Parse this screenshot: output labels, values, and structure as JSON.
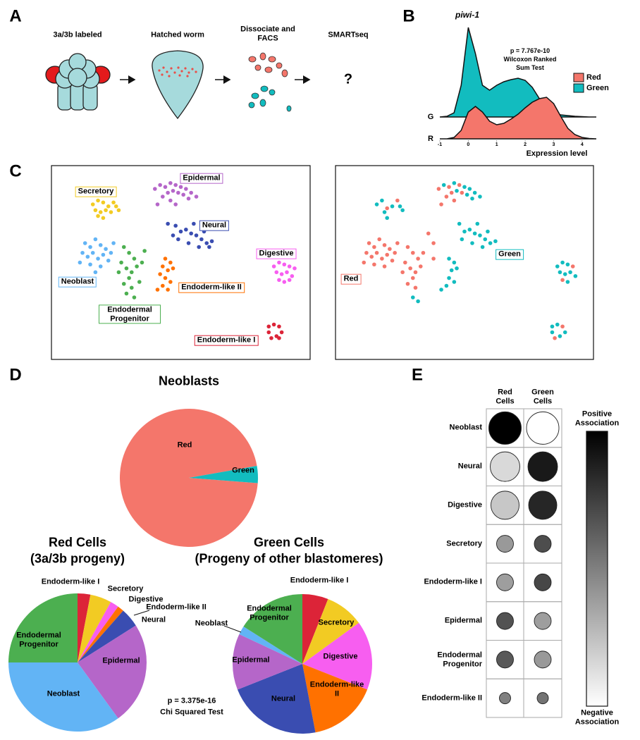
{
  "panel_labels": [
    "A",
    "B",
    "C",
    "D",
    "E"
  ],
  "panel_a": {
    "steps": [
      "3a/3b labeled",
      "Hatched worm",
      "Dissociate and FACS",
      "SMARTseq"
    ],
    "result": "?"
  },
  "chart_data": [
    {
      "type": "density",
      "title": "piwi-1",
      "annotation": [
        "p = 7.767e-10",
        "Wilcoxon Ranked",
        "Sum Test"
      ],
      "x": [
        -1,
        -0.75,
        -0.5,
        -0.25,
        0,
        0.25,
        0.5,
        0.75,
        1,
        1.25,
        1.5,
        1.75,
        2,
        2.25,
        2.5,
        2.75,
        3,
        3.25,
        3.5,
        3.75,
        4,
        4.25,
        4.5
      ],
      "series": [
        {
          "name": "Red",
          "label": "R",
          "color": "#f4766b",
          "values": [
            0,
            0,
            0.02,
            0.12,
            0.38,
            0.46,
            0.38,
            0.25,
            0.2,
            0.22,
            0.28,
            0.35,
            0.44,
            0.52,
            0.57,
            0.59,
            0.5,
            0.32,
            0.15,
            0.06,
            0.02,
            0.005,
            0
          ]
        },
        {
          "name": "Green",
          "label": "G",
          "color": "#12bcbf",
          "values": [
            0,
            0.01,
            0.06,
            0.45,
            1.27,
            0.9,
            0.45,
            0.38,
            0.45,
            0.5,
            0.53,
            0.55,
            0.52,
            0.42,
            0.26,
            0.12,
            0.06,
            0.03,
            0.02,
            0.01,
            0.005,
            0,
            0
          ]
        }
      ],
      "xlabel": "Expression level",
      "xlim": [
        -1,
        4.5
      ],
      "xticks": [
        -1,
        0,
        1,
        2,
        3,
        4
      ]
    },
    {
      "type": "scatter",
      "series": [
        {
          "name": "Secretory",
          "color": "#f2cb23",
          "x": [
            16,
            18,
            20,
            22,
            17,
            19,
            21,
            23,
            25,
            24,
            18,
            20,
            26
          ],
          "values": [
            80,
            82,
            81,
            79,
            77,
            76,
            77,
            76,
            79,
            81,
            74,
            73,
            77
          ]
        },
        {
          "name": "Epidermal",
          "color": "#b566c9",
          "x": [
            40,
            42,
            44,
            46,
            48,
            50,
            52,
            54,
            45,
            47,
            49,
            51,
            43,
            46,
            53,
            56,
            41,
            48,
            52
          ],
          "values": [
            88,
            90,
            89,
            91,
            90,
            89,
            88,
            86,
            86,
            87,
            86,
            85,
            84,
            82,
            83,
            84,
            80,
            80,
            92
          ]
        },
        {
          "name": "Neural",
          "color": "#3a4db1",
          "x": [
            45,
            48,
            50,
            52,
            54,
            56,
            58,
            60,
            61,
            57,
            53,
            49,
            47,
            55,
            59,
            62
          ],
          "values": [
            70,
            69,
            66,
            67,
            65,
            64,
            62,
            60,
            58,
            58,
            60,
            62,
            64,
            70,
            66,
            61
          ]
        },
        {
          "name": "Neoblast",
          "color": "#62b4f5",
          "x": [
            13,
            15,
            17,
            19,
            21,
            12,
            14,
            16,
            18,
            20,
            22,
            11,
            15,
            19,
            23,
            24,
            17
          ],
          "values": [
            60,
            58,
            62,
            59,
            57,
            55,
            53,
            55,
            52,
            54,
            51,
            50,
            49,
            48,
            55,
            60,
            45
          ]
        },
        {
          "name": "Endodermal Progenitor",
          "color": "#4caf50",
          "x": [
            28,
            30,
            32,
            27,
            29,
            31,
            33,
            35,
            30,
            28,
            31,
            29,
            32,
            34,
            26,
            36
          ],
          "values": [
            58,
            55,
            52,
            50,
            47,
            45,
            48,
            50,
            42,
            39,
            37,
            34,
            32,
            40,
            45,
            56
          ]
        },
        {
          "name": "Endoderm-like II",
          "color": "#ff7100",
          "x": [
            44,
            46,
            43,
            45,
            47,
            42,
            44,
            46,
            43,
            41,
            45
          ],
          "values": [
            52,
            50,
            48,
            46,
            47,
            44,
            42,
            40,
            38,
            36,
            36
          ]
        },
        {
          "name": "Digestive",
          "color": "#f75ef0",
          "x": [
            86,
            88,
            90,
            92,
            87,
            89,
            91,
            93,
            88,
            90,
            92,
            94
          ],
          "values": [
            48,
            50,
            49,
            48,
            45,
            44,
            45,
            43,
            41,
            40,
            41,
            47
          ]
        },
        {
          "name": "Endoderm-like I",
          "color": "#dc2438",
          "x": [
            84,
            86,
            88,
            89,
            87,
            85,
            84,
            88
          ],
          "values": [
            17,
            18,
            17,
            14,
            12,
            11,
            14,
            11
          ]
        }
      ]
    },
    {
      "type": "scatter",
      "series": [
        {
          "name": "Red",
          "color": "#f4766b",
          "x": [
            13,
            15,
            17,
            19,
            21,
            12,
            14,
            16,
            18,
            20,
            22,
            11,
            15,
            19,
            23,
            24,
            28,
            30,
            32,
            27,
            29,
            31,
            33,
            30,
            28,
            31,
            26,
            40,
            44,
            48,
            45,
            49,
            43,
            46,
            41,
            36,
            38,
            24,
            20,
            88,
            85,
            92,
            88,
            34,
            38
          ],
          "values": [
            60,
            58,
            62,
            59,
            57,
            55,
            53,
            55,
            52,
            54,
            51,
            50,
            49,
            48,
            55,
            60,
            58,
            55,
            52,
            50,
            47,
            45,
            48,
            42,
            39,
            37,
            45,
            88,
            89,
            90,
            86,
            86,
            84,
            82,
            80,
            65,
            60,
            82,
            78,
            17,
            11,
            48,
            41,
            55,
            52
          ]
        },
        {
          "name": "Green",
          "color": "#12bcbf",
          "x": [
            16,
            18,
            22,
            19,
            25,
            42,
            46,
            50,
            52,
            54,
            47,
            51,
            53,
            56,
            48,
            50,
            52,
            54,
            56,
            58,
            60,
            57,
            53,
            49,
            55,
            59,
            62,
            44,
            46,
            45,
            47,
            44,
            46,
            43,
            41,
            30,
            32,
            86,
            88,
            90,
            87,
            89,
            91,
            93,
            90,
            84,
            86,
            89,
            87,
            84,
            20,
            26
          ],
          "values": [
            80,
            82,
            79,
            76,
            79,
            90,
            91,
            89,
            88,
            86,
            87,
            85,
            83,
            84,
            70,
            66,
            67,
            65,
            64,
            62,
            60,
            58,
            60,
            62,
            70,
            66,
            61,
            52,
            50,
            46,
            47,
            42,
            40,
            38,
            36,
            32,
            30,
            48,
            50,
            49,
            45,
            44,
            45,
            43,
            40,
            17,
            18,
            14,
            12,
            14,
            73,
            77
          ]
        }
      ]
    },
    {
      "type": "pie",
      "title": "Neoblasts",
      "categories": [
        "Red",
        "Green"
      ],
      "values": [
        96,
        4
      ],
      "colors": [
        "#f4766b",
        "#12bcbf"
      ]
    },
    {
      "type": "pie",
      "title": "Red Cells",
      "subtitle": "(3a/3b progeny)",
      "categories": [
        "Endoderm-like I",
        "Secretory",
        "Digestive",
        "Endoderm-like II",
        "Neural",
        "Epidermal",
        "Neoblast",
        "Endodermal Progenitor"
      ],
      "values": [
        3,
        5,
        2,
        1.5,
        4.5,
        24,
        35,
        25
      ],
      "colors": [
        "#dc2438",
        "#f2cb23",
        "#f75ef0",
        "#ff7100",
        "#3a4db1",
        "#b566c9",
        "#62b4f5",
        "#4caf50"
      ],
      "annotation": [
        "p = 3.375e-16",
        "Chi Squared Test"
      ]
    },
    {
      "type": "pie",
      "title": "Green Cells",
      "subtitle": "(Progeny of other blastomeres)",
      "categories": [
        "Endoderm-like I",
        "Secretory",
        "Digestive",
        "Endoderm-like II",
        "Neural",
        "Epidermal",
        "Neoblast",
        "Endodermal Progenitor"
      ],
      "values": [
        6,
        9,
        16,
        16,
        22,
        13,
        2,
        16
      ],
      "colors": [
        "#dc2438",
        "#f2cb23",
        "#f75ef0",
        "#ff7100",
        "#3a4db1",
        "#b566c9",
        "#62b4f5",
        "#4caf50"
      ]
    },
    {
      "type": "dot",
      "categories": [
        "Neoblast",
        "Neural",
        "Digestive",
        "Secretory",
        "Endoderm-like I",
        "Epidermal",
        "Endodermal Progenitor",
        "Endoderm-like II"
      ],
      "series": [
        {
          "name": "Red Cells",
          "values": [
            1.0,
            0.15,
            0.22,
            0.4,
            0.38,
            0.68,
            0.65,
            0.5
          ]
        },
        {
          "name": "Green Cells",
          "values": [
            0,
            0.9,
            0.85,
            0.7,
            0.72,
            0.38,
            0.4,
            0.55
          ]
        }
      ],
      "sizes": [
        23,
        21,
        20,
        12,
        12,
        12,
        12,
        8
      ],
      "colorbar_labels": [
        "Positive Association",
        "Negative Association"
      ]
    }
  ]
}
